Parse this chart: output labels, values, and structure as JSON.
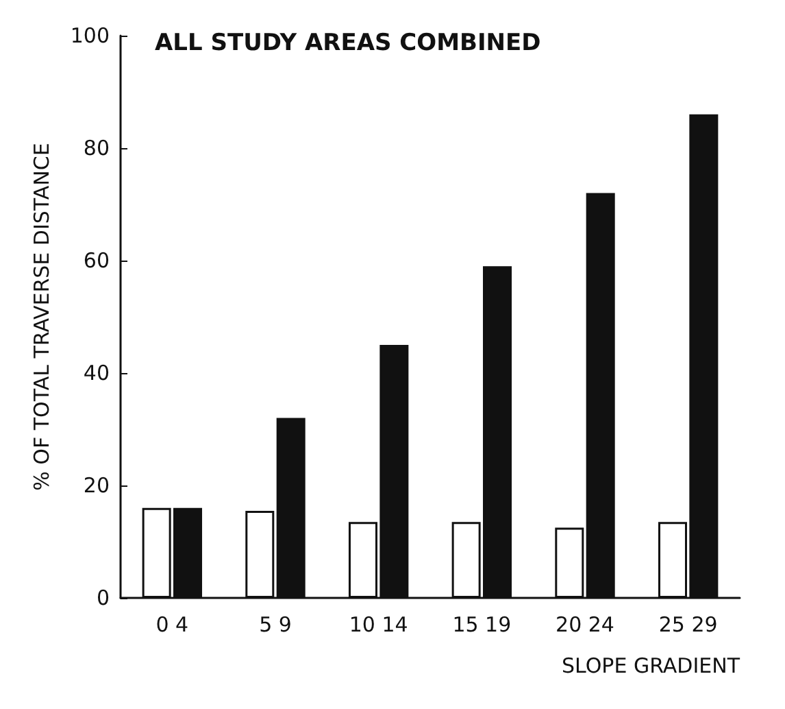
{
  "chart_data": {
    "type": "bar",
    "title": "ALL STUDY AREAS COMBINED",
    "xlabel": "SLOPE GRADIENT",
    "ylabel": "% OF TOTAL TRAVERSE DISTANCE",
    "categories": [
      "0 4",
      "5 9",
      "10 14",
      "15 19",
      "20 24",
      "25 29"
    ],
    "series": [
      {
        "color": "#ffffff",
        "values": [
          16,
          15.5,
          13.5,
          13.5,
          12.5,
          13.5
        ]
      },
      {
        "color": "#111111",
        "values": [
          16,
          32,
          45,
          59,
          72,
          86
        ]
      }
    ],
    "ylim": [
      0,
      100
    ],
    "yticks": [
      0,
      20,
      40,
      60,
      80,
      100
    ]
  }
}
